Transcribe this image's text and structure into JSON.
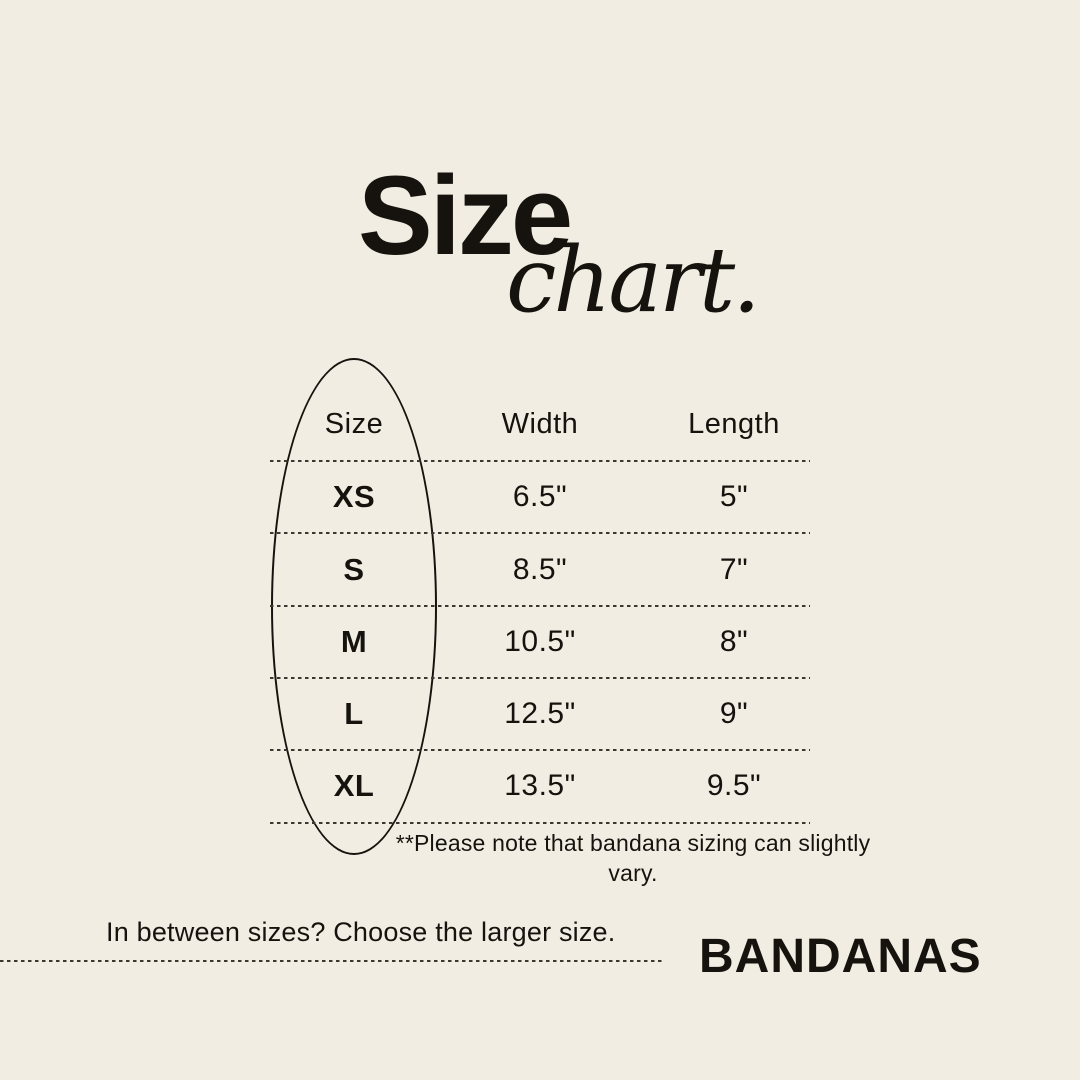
{
  "colors": {
    "bg": "#f2ede3",
    "ink": "#16130e"
  },
  "title": {
    "main": "Size",
    "script": "chart."
  },
  "chart_data": {
    "type": "table",
    "title": "Size chart.",
    "columns": [
      "Size",
      "Width",
      "Length"
    ],
    "rows": [
      [
        "XS",
        "6.5\"",
        "5\""
      ],
      [
        "S",
        "8.5\"",
        "7\""
      ],
      [
        "M",
        "10.5\"",
        "8\""
      ],
      [
        "L",
        "12.5\"",
        "9\""
      ],
      [
        "XL",
        "13.5\"",
        "9.5\""
      ]
    ],
    "note": "**Please note that bandana sizing can slightly vary.",
    "layout_hints": {
      "highlighted_column": "Size",
      "row_separators": "dotted",
      "grid": "horizontal-only"
    }
  },
  "footer": {
    "tip": "In between sizes? Choose the larger size.",
    "brand": "BANDANAS"
  }
}
